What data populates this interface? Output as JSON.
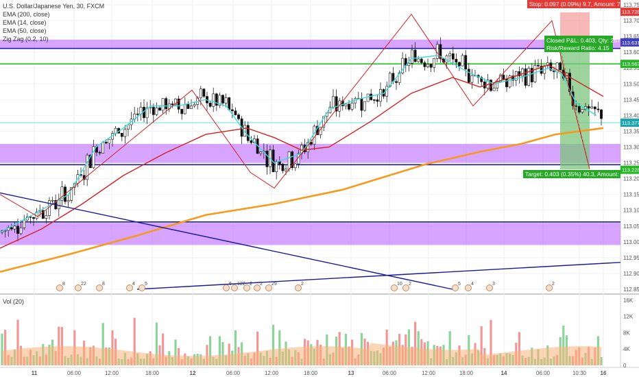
{
  "header": {
    "title": "U.S. Dollar/Japanese Yen, 30, FXCM",
    "indicators": [
      "EMA (200, close)",
      "EMA (14, close)",
      "EMA (50, close)",
      "Zig Zag (0.2, 10)"
    ]
  },
  "trade_box": {
    "stop_label": "Stop: 0.097 (0.09%) 9.7, Amount: 75.07",
    "pnl_label": "Closed P&L: 0.403, Qty: 257",
    "rr_label": "Risk/Reward Ratio: 4.15",
    "target_label": "Target: 0.403 (0.35%) 40.3, Amount: 203.5"
  },
  "price_tags": [
    {
      "label": "113.728",
      "value": 113.728,
      "color": "#e53935"
    },
    {
      "label": "113.631",
      "value": 113.631,
      "color": "#3f3fbf"
    },
    {
      "label": "113.563",
      "value": 113.563,
      "color": "#27b427"
    },
    {
      "label": "113.377",
      "value": 113.377,
      "color": "#1aa6b0"
    },
    {
      "label": "113.228",
      "value": 113.228,
      "color": "#27b427"
    }
  ],
  "volume_panel": {
    "label": "Vol (20)"
  },
  "event_markers": [
    "8",
    "22",
    "8",
    "4",
    "5",
    "6",
    "122",
    "2",
    "2",
    "29",
    "2",
    "10",
    "2",
    "5",
    "4",
    "3",
    "2"
  ],
  "chart_data": {
    "type": "candlestick",
    "y_axis": {
      "min": 112.85,
      "max": 113.75,
      "ticks": [
        "113.750",
        "113.700",
        "113.650",
        "113.600",
        "113.550",
        "113.500",
        "113.450",
        "113.400",
        "113.350",
        "113.300",
        "113.250",
        "113.200",
        "113.150",
        "113.100",
        "113.050",
        "113.000",
        "112.950",
        "112.900",
        "112.850"
      ]
    },
    "x_ticks": [
      "11",
      "06:00",
      "12:00",
      "18:00",
      "12",
      "06:00",
      "12:00",
      "18:00",
      "13",
      "06:00",
      "12:00",
      "18:00",
      "14",
      "06:00",
      "10:30",
      "16"
    ],
    "volume_axis": {
      "ticks": [
        "16K",
        "12K",
        "8K",
        "4K",
        "0"
      ],
      "max": 17000
    },
    "zones": [
      {
        "from": 113.61,
        "to": 113.64,
        "color": "#b04bff"
      },
      {
        "from": 113.25,
        "to": 113.31,
        "color": "#b04bff"
      },
      {
        "from": 112.99,
        "to": 113.06,
        "color": "#b04bff"
      }
    ],
    "h_lines": [
      {
        "value": 113.612,
        "color": "#1a1a9a"
      },
      {
        "value": 113.563,
        "color": "#27c427"
      },
      {
        "value": 113.377,
        "color": "#66e0e0"
      },
      {
        "value": 113.244,
        "color": "#1a1a9a"
      },
      {
        "value": 113.063,
        "color": "#1a1a9a"
      }
    ],
    "series": [
      {
        "name": "EMA (200, close)",
        "color": "#f59a1b",
        "points": [
          [
            0,
            112.905
          ],
          [
            100,
            112.96
          ],
          [
            200,
            113.02
          ],
          [
            300,
            113.085
          ],
          [
            400,
            113.12
          ],
          [
            500,
            113.165
          ],
          [
            560,
            113.205
          ],
          [
            620,
            113.245
          ],
          [
            700,
            113.285
          ],
          [
            760,
            113.31
          ],
          [
            810,
            113.34
          ],
          [
            880,
            113.36
          ]
        ]
      },
      {
        "name": "EMA (50, close)",
        "color": "#d32020",
        "points": [
          [
            0,
            112.98
          ],
          [
            60,
            113.04
          ],
          [
            120,
            113.12
          ],
          [
            180,
            113.21
          ],
          [
            240,
            113.28
          ],
          [
            300,
            113.34
          ],
          [
            360,
            113.36
          ],
          [
            400,
            113.33
          ],
          [
            440,
            113.29
          ],
          [
            480,
            113.3
          ],
          [
            540,
            113.38
          ],
          [
            600,
            113.47
          ],
          [
            660,
            113.52
          ],
          [
            700,
            113.49
          ],
          [
            760,
            113.53
          ],
          [
            800,
            113.56
          ],
          [
            840,
            113.51
          ],
          [
            880,
            113.46
          ]
        ]
      },
      {
        "name": "EMA (14, close)",
        "color": "#3fd9d9",
        "points": [
          [
            0,
            113.03
          ],
          [
            60,
            113.1
          ],
          [
            100,
            113.15
          ],
          [
            140,
            113.3
          ],
          [
            180,
            113.36
          ],
          [
            220,
            113.43
          ],
          [
            260,
            113.43
          ],
          [
            300,
            113.45
          ],
          [
            330,
            113.43
          ],
          [
            360,
            113.34
          ],
          [
            400,
            113.25
          ],
          [
            440,
            113.28
          ],
          [
            480,
            113.42
          ],
          [
            520,
            113.45
          ],
          [
            560,
            113.47
          ],
          [
            600,
            113.58
          ],
          [
            640,
            113.59
          ],
          [
            680,
            113.54
          ],
          [
            720,
            113.5
          ],
          [
            760,
            113.52
          ],
          [
            800,
            113.55
          ],
          [
            820,
            113.53
          ],
          [
            840,
            113.44
          ],
          [
            870,
            113.4
          ]
        ]
      },
      {
        "name": "Zig Zag (0.2, 10)",
        "color": "#d32020",
        "points": [
          [
            0,
            113.15
          ],
          [
            55,
            113.08
          ],
          [
            280,
            113.48
          ],
          [
            365,
            113.22
          ],
          [
            400,
            113.17
          ],
          [
            600,
            113.72
          ],
          [
            690,
            113.43
          ],
          [
            805,
            113.7
          ],
          [
            860,
            113.23
          ]
        ]
      }
    ],
    "trend_lines": [
      {
        "color": "#1a1a9a",
        "points": [
          [
            0,
            113.155
          ],
          [
            660,
            112.85
          ]
        ]
      },
      {
        "color": "#1a1a9a",
        "points": [
          [
            200,
            112.85
          ],
          [
            905,
            112.935
          ]
        ]
      }
    ]
  }
}
